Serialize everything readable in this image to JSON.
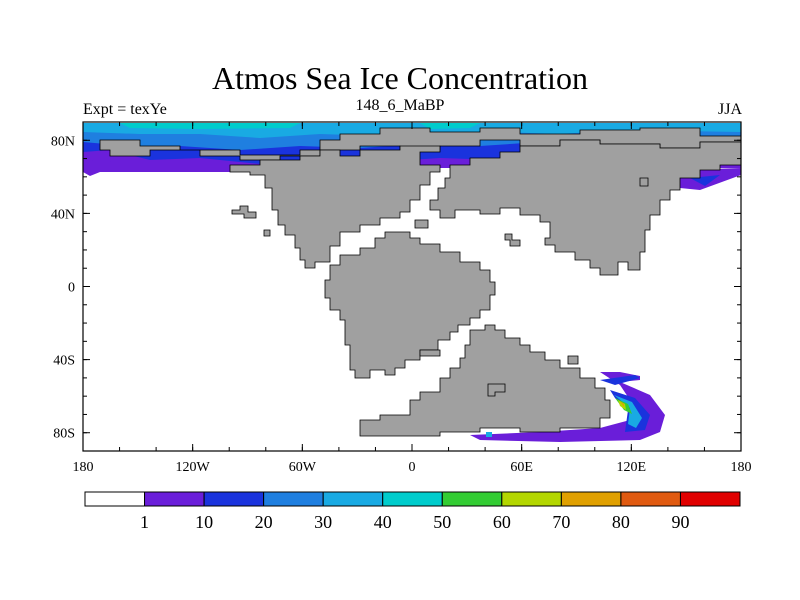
{
  "title": "Atmos Sea Ice Concentration",
  "subtitle_left": "Expt = texYe",
  "subtitle_center": "148_6_MaBP",
  "subtitle_right": "JJA",
  "colors": {
    "land": "#a0a0a0",
    "ocean": "#ffffff",
    "frame": "#000000"
  },
  "map": {
    "projection": "cylindrical-equidistant",
    "lon_range": [
      -180,
      180
    ],
    "lat_range": [
      -90,
      90
    ],
    "x_ticks": [
      {
        "value": -180,
        "label": "180"
      },
      {
        "value": -120,
        "label": "120W"
      },
      {
        "value": -60,
        "label": "60W"
      },
      {
        "value": 0,
        "label": "0"
      },
      {
        "value": 60,
        "label": "60E"
      },
      {
        "value": 120,
        "label": "120E"
      },
      {
        "value": 180,
        "label": "180"
      }
    ],
    "y_ticks": [
      {
        "value": 80,
        "label": "80N"
      },
      {
        "value": 40,
        "label": "40N"
      },
      {
        "value": 0,
        "label": "0"
      },
      {
        "value": -40,
        "label": "40S"
      },
      {
        "value": -80,
        "label": "80S"
      }
    ]
  },
  "colorbar": {
    "levels": [
      "1",
      "10",
      "20",
      "30",
      "40",
      "50",
      "60",
      "70",
      "80",
      "90"
    ],
    "colors": [
      "#ffffff",
      "#6a1ed9",
      "#1a33dd",
      "#1f7fe0",
      "#19aae3",
      "#00cccc",
      "#33cc33",
      "#b3d600",
      "#e0a000",
      "#e05a10",
      "#e00000"
    ]
  }
}
